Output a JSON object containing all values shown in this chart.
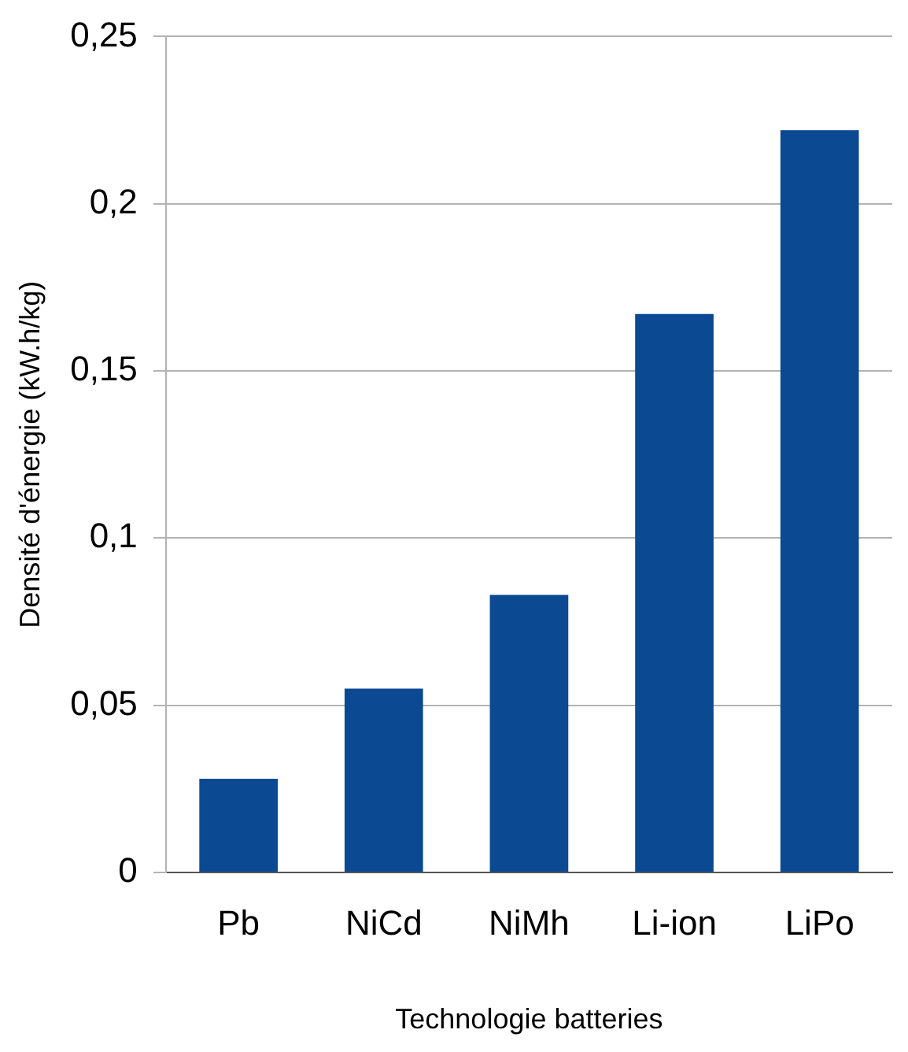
{
  "chart_data": {
    "type": "bar",
    "xlabel": "Technologie batteries",
    "ylabel": "Densité d'énergie (kW.h/kg)",
    "categories": [
      "Pb",
      "NiCd",
      "NiMh",
      "Li-ion",
      "LiPo"
    ],
    "values": [
      0.028,
      0.055,
      0.083,
      0.167,
      0.222
    ],
    "color": "#0b4a92",
    "ylim": [
      0,
      0.25
    ],
    "yticks": [
      {
        "value": 0,
        "label": "0"
      },
      {
        "value": 0.05,
        "label": "0,05"
      },
      {
        "value": 0.1,
        "label": "0,1"
      },
      {
        "value": 0.15,
        "label": "0,15"
      },
      {
        "value": 0.2,
        "label": "0,2"
      },
      {
        "value": 0.25,
        "label": "0,25"
      }
    ],
    "grid": "y"
  }
}
